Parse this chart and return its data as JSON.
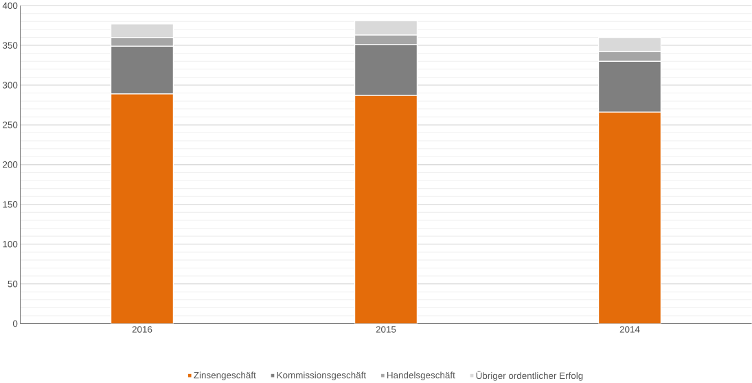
{
  "chart_data": {
    "type": "bar",
    "stacked": true,
    "categories": [
      "2016",
      "2015",
      "2014"
    ],
    "series": [
      {
        "name": "Zinsengeschäft",
        "color": "#e46c0a",
        "values": [
          289,
          287,
          266
        ]
      },
      {
        "name": "Kommissionsgeschäft",
        "color": "#7f7f7f",
        "values": [
          60,
          64,
          64
        ]
      },
      {
        "name": "Handelsgeschäft",
        "color": "#a6a6a6",
        "values": [
          11,
          12,
          12
        ]
      },
      {
        "name": "Übriger ordentlicher Erfolg",
        "color": "#d9d9d9",
        "values": [
          17,
          18,
          18
        ]
      }
    ],
    "ylim": [
      0,
      400
    ],
    "yticks": [
      0,
      50,
      100,
      150,
      200,
      250,
      300,
      350,
      400
    ],
    "grid": "y",
    "legend": "bottom"
  }
}
